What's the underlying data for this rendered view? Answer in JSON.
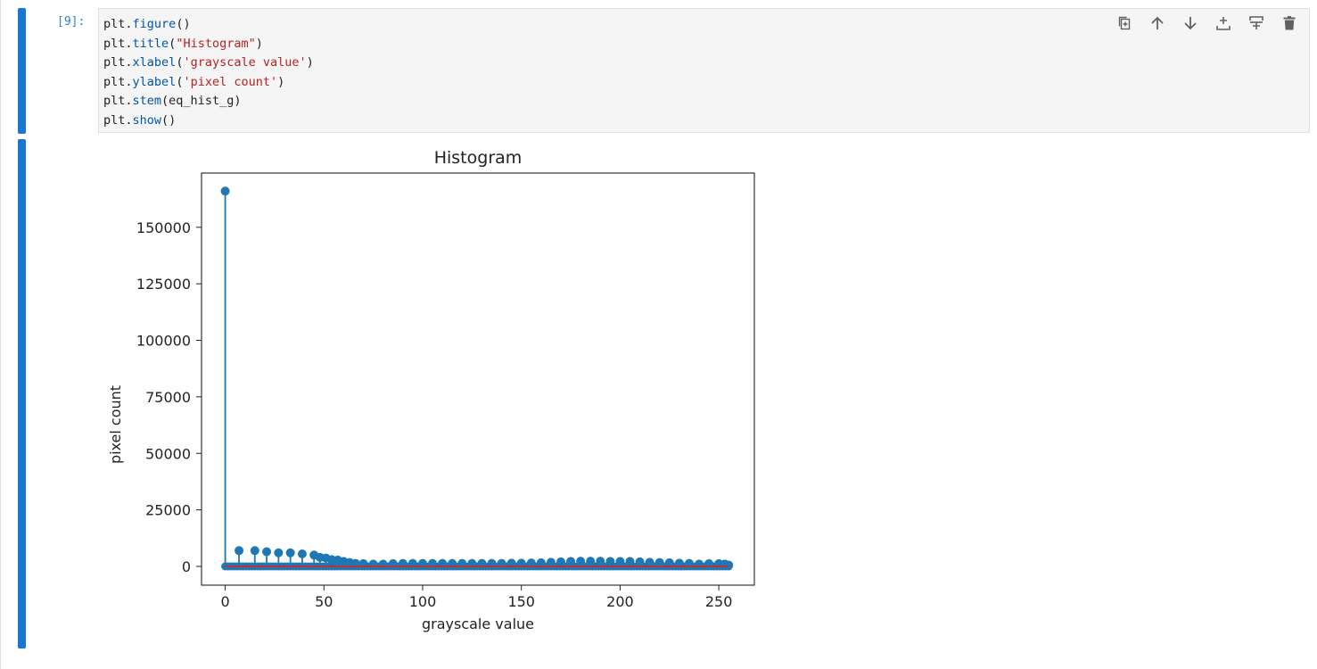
{
  "cell": {
    "prompt": "[9]:",
    "code_lines": [
      [
        {
          "t": "name",
          "v": "plt"
        },
        {
          "t": "dot",
          "v": "."
        },
        {
          "t": "attr",
          "v": "figure"
        },
        {
          "t": "punc",
          "v": "()"
        }
      ],
      [
        {
          "t": "name",
          "v": "plt"
        },
        {
          "t": "dot",
          "v": "."
        },
        {
          "t": "attr",
          "v": "title"
        },
        {
          "t": "punc",
          "v": "("
        },
        {
          "t": "str",
          "v": "\"Histogram\""
        },
        {
          "t": "punc",
          "v": ")"
        }
      ],
      [
        {
          "t": "name",
          "v": "plt"
        },
        {
          "t": "dot",
          "v": "."
        },
        {
          "t": "attr",
          "v": "xlabel"
        },
        {
          "t": "punc",
          "v": "("
        },
        {
          "t": "str",
          "v": "'grayscale value'"
        },
        {
          "t": "punc",
          "v": ")"
        }
      ],
      [
        {
          "t": "name",
          "v": "plt"
        },
        {
          "t": "dot",
          "v": "."
        },
        {
          "t": "attr",
          "v": "ylabel"
        },
        {
          "t": "punc",
          "v": "("
        },
        {
          "t": "str",
          "v": "'pixel count'"
        },
        {
          "t": "punc",
          "v": ")"
        }
      ],
      [
        {
          "t": "name",
          "v": "plt"
        },
        {
          "t": "dot",
          "v": "."
        },
        {
          "t": "attr",
          "v": "stem"
        },
        {
          "t": "punc",
          "v": "(eq_hist_g)"
        }
      ],
      [
        {
          "t": "name",
          "v": "plt"
        },
        {
          "t": "dot",
          "v": "."
        },
        {
          "t": "attr",
          "v": "show"
        },
        {
          "t": "punc",
          "v": "()"
        }
      ]
    ]
  },
  "toolbar": [
    {
      "name": "duplicate-cell-button",
      "icon": "duplicate-icon"
    },
    {
      "name": "move-up-button",
      "icon": "arrow-up-icon"
    },
    {
      "name": "move-down-button",
      "icon": "arrow-down-icon"
    },
    {
      "name": "insert-above-button",
      "icon": "insert-above-icon"
    },
    {
      "name": "insert-below-button",
      "icon": "insert-below-icon"
    },
    {
      "name": "delete-cell-button",
      "icon": "trash-icon"
    }
  ],
  "colors": {
    "cell_bar": "#1976d2",
    "stem": "#1f77b4",
    "baseline": "#d62728",
    "toolbar_icon": "#616161"
  },
  "chart_data": {
    "type": "stem",
    "title": "Histogram",
    "xlabel": "grayscale value",
    "ylabel": "pixel count",
    "xlim": [
      -12,
      268
    ],
    "ylim": [
      -8300,
      174000
    ],
    "xticks": [
      0,
      50,
      100,
      150,
      200,
      250
    ],
    "yticks": [
      0,
      25000,
      50000,
      75000,
      100000,
      125000,
      150000
    ],
    "ytick_labels": [
      "0",
      "25000",
      "50000",
      "75000",
      "100000",
      "125000",
      "150000"
    ],
    "grid": false,
    "points": [
      [
        0,
        166000
      ],
      [
        7,
        7000
      ],
      [
        15,
        7000
      ],
      [
        21,
        6500
      ],
      [
        27,
        6000
      ],
      [
        33,
        6000
      ],
      [
        39,
        5500
      ],
      [
        45,
        5000
      ],
      [
        48,
        4000
      ],
      [
        51,
        3700
      ],
      [
        54,
        3000
      ],
      [
        57,
        2800
      ],
      [
        60,
        2200
      ],
      [
        63,
        1700
      ],
      [
        66,
        1300
      ],
      [
        70,
        1200
      ],
      [
        75,
        1000
      ],
      [
        80,
        1000
      ],
      [
        85,
        1200
      ],
      [
        90,
        1300
      ],
      [
        95,
        1300
      ],
      [
        100,
        1300
      ],
      [
        105,
        1300
      ],
      [
        110,
        1300
      ],
      [
        115,
        1300
      ],
      [
        120,
        1300
      ],
      [
        125,
        1300
      ],
      [
        130,
        1300
      ],
      [
        135,
        1300
      ],
      [
        140,
        1300
      ],
      [
        145,
        1400
      ],
      [
        150,
        1400
      ],
      [
        155,
        1500
      ],
      [
        160,
        1600
      ],
      [
        165,
        1800
      ],
      [
        170,
        2000
      ],
      [
        175,
        2200
      ],
      [
        180,
        2300
      ],
      [
        185,
        2300
      ],
      [
        190,
        2300
      ],
      [
        195,
        2200
      ],
      [
        200,
        2200
      ],
      [
        205,
        2200
      ],
      [
        210,
        2000
      ],
      [
        215,
        1800
      ],
      [
        220,
        1700
      ],
      [
        225,
        1600
      ],
      [
        230,
        1400
      ],
      [
        235,
        1300
      ],
      [
        240,
        1000
      ],
      [
        245,
        1200
      ],
      [
        250,
        1200
      ],
      [
        253,
        1000
      ],
      [
        255,
        600
      ]
    ]
  }
}
